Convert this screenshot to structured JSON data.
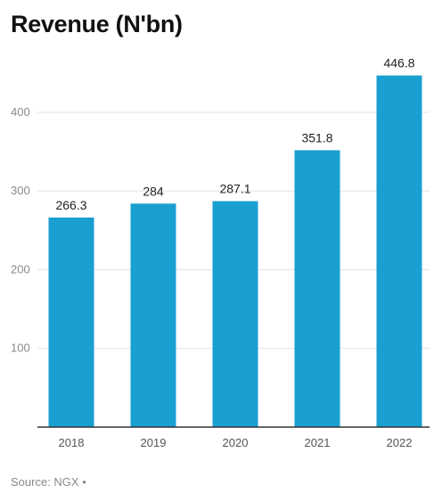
{
  "chart_data": {
    "type": "bar",
    "title": "Revenue (N'bn)",
    "categories": [
      "2018",
      "2019",
      "2020",
      "2021",
      "2022"
    ],
    "values": [
      266.3,
      284,
      287.1,
      351.8,
      446.8
    ],
    "value_labels": [
      "266.3",
      "284",
      "287.1",
      "351.8",
      "446.8"
    ],
    "xlabel": "",
    "ylabel": "",
    "ylim": [
      0,
      460
    ],
    "yticks": [
      100,
      200,
      300,
      400
    ],
    "ytick_labels": [
      "100",
      "200",
      "300",
      "400"
    ],
    "grid": true,
    "legend": "none",
    "bar_color": "#1a9fd1"
  },
  "footer": {
    "source": "Source: NGX •"
  }
}
